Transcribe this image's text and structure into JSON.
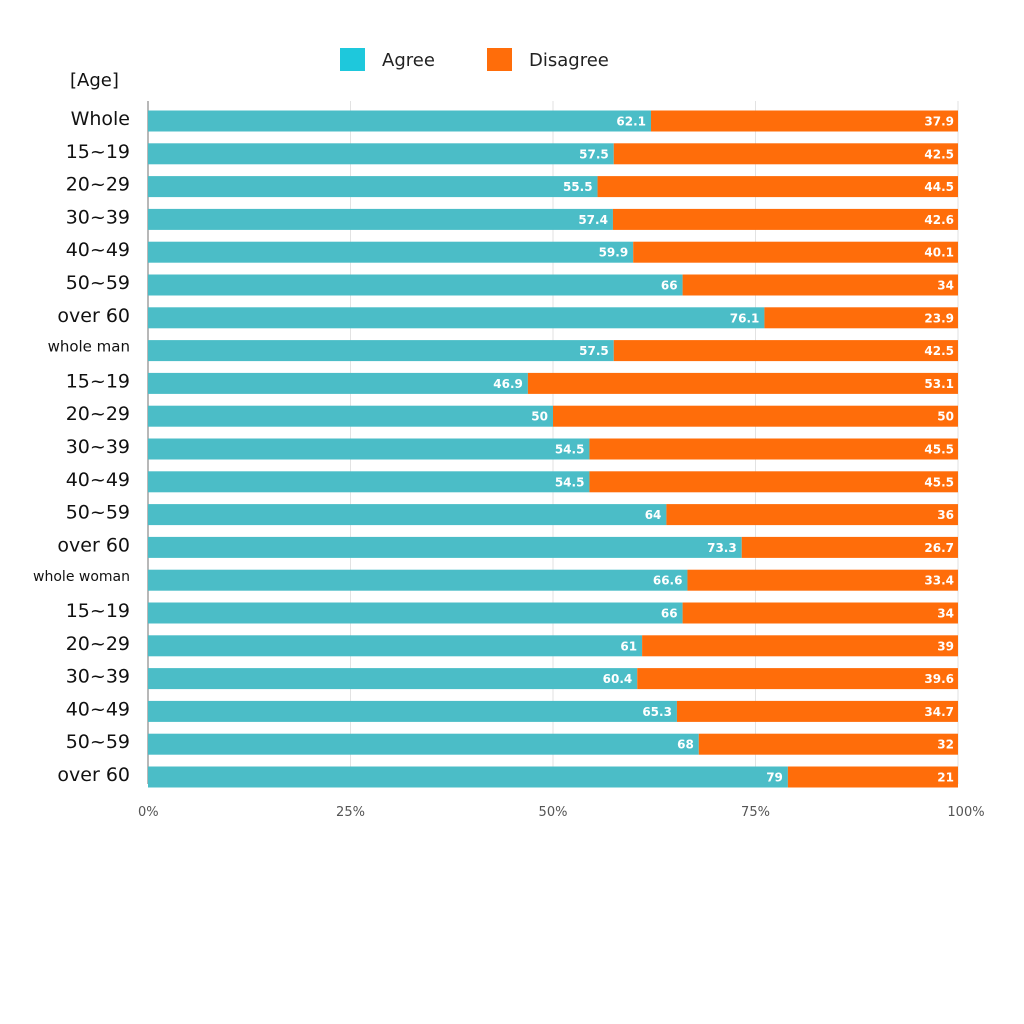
{
  "chart_data": {
    "type": "bar",
    "orientation": "horizontal",
    "stacked": true,
    "ylabel": "[Age]",
    "categories": [
      "Whole",
      "15~19",
      "20~29",
      "30~39",
      "40~49",
      "50~59",
      "over 60",
      "whole man",
      "15~19",
      "20~29",
      "30~39",
      "40~49",
      "50~59",
      "over 60",
      "whole woman",
      "15~19",
      "20~29",
      "30~39",
      "40~49",
      "50~59",
      "over 60"
    ],
    "series": [
      {
        "name": "Agree",
        "color": "#4BBDC7",
        "values": [
          62.1,
          57.5,
          55.5,
          57.4,
          59.9,
          66,
          76.1,
          57.5,
          46.9,
          50,
          54.5,
          54.5,
          64,
          73.3,
          66.6,
          66,
          61,
          60.4,
          65.3,
          68,
          79
        ]
      },
      {
        "name": "Disagree",
        "color": "#FF6D0A",
        "values": [
          37.9,
          42.5,
          44.5,
          42.6,
          40.1,
          34,
          23.9,
          42.5,
          53.1,
          50,
          45.5,
          45.5,
          36,
          26.7,
          33.4,
          34,
          39,
          39.6,
          34.7,
          32,
          21
        ]
      }
    ],
    "data_labels": {
      "Agree": [
        "62.1",
        "57.5",
        "55.5",
        "57.4",
        "59.9",
        "66",
        "76.1",
        "57.5",
        "46.9",
        "50",
        "54.5",
        "54.5",
        "64",
        "73.3",
        "66.6",
        "66",
        "61",
        "60.4",
        "65.3",
        "68",
        "79"
      ],
      "Disagree": [
        "37.9",
        "42.5",
        "44.5",
        "42.6",
        "40.1",
        "34",
        "23.9",
        "42.5",
        "53.1",
        "50",
        "45.5",
        "45.5",
        "36",
        "26.7",
        "33.4",
        "34",
        "39",
        "39.6",
        "34.7",
        "32",
        "21"
      ]
    },
    "xlim": [
      0,
      100
    ],
    "xticks": [
      "0%",
      "25%",
      "50%",
      "75%",
      "100%"
    ],
    "legend": {
      "position": "top",
      "entries": [
        "Agree",
        "Disagree"
      ]
    },
    "grid": true
  }
}
